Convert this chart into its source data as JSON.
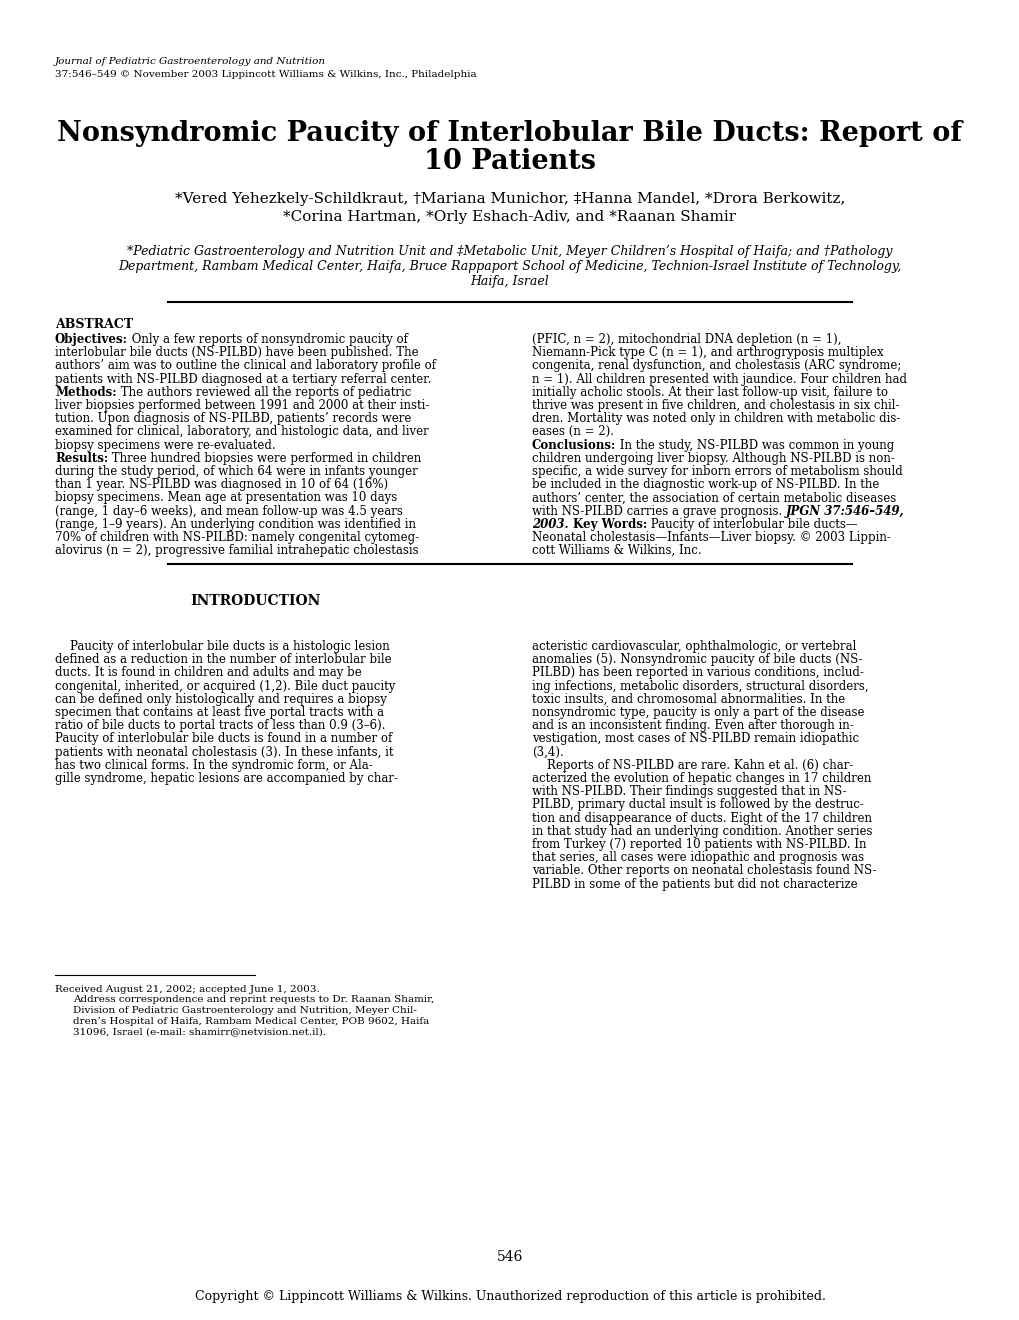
{
  "background_color": "#ffffff",
  "journal_line1": "Journal of Pediatric Gastroenterology and Nutrition",
  "journal_line2": "37:546–549 © November 2003 Lippincott Williams & Wilkins, Inc., Philadelphia",
  "title_line1": "Nonsyndromic Paucity of Interlobular Bile Ducts: Report of",
  "title_line2": "10 Patients",
  "authors_line1": "*Vered Yehezkely-Schildkraut, †Mariana Munichor, ‡Hanna Mandel, *Drora Berkowitz,",
  "authors_line2": "*Corina Hartman, *Orly Eshach-Adiv, and *Raanan Shamir",
  "affil_line1": "*Pediatric Gastroenterology and Nutrition Unit and ‡Metabolic Unit, Meyer Children’s Hospital of Haifa; and †Pathology",
  "affil_line2": "Department, Rambam Medical Center, Haifa, Bruce Rappaport School of Medicine, Technion-Israel Institute of Technology,",
  "affil_line3": "Haifa, Israel",
  "abstract_title": "ABSTRACT",
  "abs_left_lines": [
    [
      [
        "Objectives:",
        true
      ],
      [
        " Only a few reports of nonsyndromic paucity of",
        false
      ]
    ],
    [
      [
        "interlobular bile ducts (NS-PILBD) have been published. The",
        false
      ]
    ],
    [
      [
        "authors’ aim was to outline the clinical and laboratory profile of",
        false
      ]
    ],
    [
      [
        "patients with NS-PILBD diagnosed at a tertiary referral center.",
        false
      ]
    ],
    [
      [
        "Methods:",
        true
      ],
      [
        " The authors reviewed all the reports of pediatric",
        false
      ]
    ],
    [
      [
        "liver biopsies performed between 1991 and 2000 at their insti-",
        false
      ]
    ],
    [
      [
        "tution. Upon diagnosis of NS-PILBD, patients’ records were",
        false
      ]
    ],
    [
      [
        "examined for clinical, laboratory, and histologic data, and liver",
        false
      ]
    ],
    [
      [
        "biopsy specimens were re-evaluated.",
        false
      ]
    ],
    [
      [
        "Results:",
        true
      ],
      [
        " Three hundred biopsies were performed in children",
        false
      ]
    ],
    [
      [
        "during the study period, of which 64 were in infants younger",
        false
      ]
    ],
    [
      [
        "than 1 year. NS-PILBD was diagnosed in 10 of 64 (16%)",
        false
      ]
    ],
    [
      [
        "biopsy specimens. Mean age at presentation was 10 days",
        false
      ]
    ],
    [
      [
        "(range, 1 day–6 weeks), and mean follow-up was 4.5 years",
        false
      ]
    ],
    [
      [
        "(range, 1–9 years). An underlying condition was identified in",
        false
      ]
    ],
    [
      [
        "70% of children with NS-PILBD: namely congenital cytomeg-",
        false
      ]
    ],
    [
      [
        "alovirus (n = 2), progressive familial intrahepatic cholestasis",
        false
      ]
    ]
  ],
  "abs_right_lines": [
    [
      [
        "(PFIC, n = 2), mitochondrial DNA depletion (n = 1),",
        false
      ]
    ],
    [
      [
        "Niemann-Pick type C (n = 1), and arthrogryposis multiplex",
        false
      ]
    ],
    [
      [
        "congenita, renal dysfunction, and cholestasis (ARC syndrome;",
        false
      ]
    ],
    [
      [
        "n = 1). All children presented with jaundice. Four children had",
        false
      ]
    ],
    [
      [
        "initially acholic stools. At their last follow-up visit, failure to",
        false
      ]
    ],
    [
      [
        "thrive was present in five children, and cholestasis in six chil-",
        false
      ]
    ],
    [
      [
        "dren. Mortality was noted only in children with metabolic dis-",
        false
      ]
    ],
    [
      [
        "eases (n = 2).",
        false
      ]
    ],
    [
      [
        "Conclusions:",
        true
      ],
      [
        " In the study, NS-PILBD was common in young",
        false
      ]
    ],
    [
      [
        "children undergoing liver biopsy. Although NS-PILBD is non-",
        false
      ]
    ],
    [
      [
        "specific, a wide survey for inborn errors of metabolism should",
        false
      ]
    ],
    [
      [
        "be included in the diagnostic work-up of NS-PILBD. In the",
        false
      ]
    ],
    [
      [
        "authors’ center, the association of certain metabolic diseases",
        false
      ]
    ],
    [
      [
        "with NS-PILBD carries a grave prognosis. ",
        false
      ],
      [
        "JPGN 37:546–549,",
        true,
        true
      ]
    ],
    [
      [
        "2003. ",
        true,
        true
      ],
      [
        "Key Words:",
        true,
        false
      ],
      [
        " Paucity of interlobular bile ducts—",
        false
      ]
    ],
    [
      [
        "Neonatal cholestasis—Infants—Liver biopsy. © 2003 Lippin-",
        false
      ]
    ],
    [
      [
        "cott Williams & Wilkins, Inc.",
        false
      ]
    ]
  ],
  "intro_title": "INTRODUCTION",
  "intro_left_lines": [
    [
      [
        "    Paucity of interlobular bile ducts is a histologic lesion",
        false
      ]
    ],
    [
      [
        "defined as a reduction in the number of interlobular bile",
        false
      ]
    ],
    [
      [
        "ducts. It is found in children and adults and may be",
        false
      ]
    ],
    [
      [
        "congenital, inherited, or acquired (1,2). Bile duct paucity",
        false
      ]
    ],
    [
      [
        "can be defined only histologically and requires a biopsy",
        false
      ]
    ],
    [
      [
        "specimen that contains at least five portal tracts with a",
        false
      ]
    ],
    [
      [
        "ratio of bile ducts to portal tracts of less than 0.9 (3–6).",
        false
      ]
    ],
    [
      [
        "Paucity of interlobular bile ducts is found in a number of",
        false
      ]
    ],
    [
      [
        "patients with neonatal cholestasis (3). In these infants, it",
        false
      ]
    ],
    [
      [
        "has two clinical forms. In the syndromic form, or Ala-",
        false
      ]
    ],
    [
      [
        "gille syndrome, hepatic lesions are accompanied by char-",
        false
      ]
    ]
  ],
  "intro_right_lines": [
    [
      [
        "acteristic cardiovascular, ophthalmologic, or vertebral",
        false
      ]
    ],
    [
      [
        "anomalies (5). Nonsyndromic paucity of bile ducts (NS-",
        false
      ]
    ],
    [
      [
        "PILBD) has been reported in various conditions, includ-",
        false
      ]
    ],
    [
      [
        "ing infections, metabolic disorders, structural disorders,",
        false
      ]
    ],
    [
      [
        "toxic insults, and chromosomal abnormalities. In the",
        false
      ]
    ],
    [
      [
        "nonsyndromic type, paucity is only a part of the disease",
        false
      ]
    ],
    [
      [
        "and is an inconsistent finding. Even after thorough in-",
        false
      ]
    ],
    [
      [
        "vestigation, most cases of NS-PILBD remain idiopathic",
        false
      ]
    ],
    [
      [
        "(3,4).",
        false
      ]
    ],
    [
      [
        "    Reports of NS-PILBD are rare. Kahn et al. (6) char-",
        false
      ]
    ],
    [
      [
        "acterized the evolution of hepatic changes in 17 children",
        false
      ]
    ],
    [
      [
        "with NS-PILBD. Their findings suggested that in NS-",
        false
      ]
    ],
    [
      [
        "PILBD, primary ductal insult is followed by the destruc-",
        false
      ]
    ],
    [
      [
        "tion and disappearance of ducts. Eight of the 17 children",
        false
      ]
    ],
    [
      [
        "in that study had an underlying condition. Another series",
        false
      ]
    ],
    [
      [
        "from Turkey (7) reported 10 patients with NS-PILBD. In",
        false
      ]
    ],
    [
      [
        "that series, all cases were idiopathic and prognosis was",
        false
      ]
    ],
    [
      [
        "variable. Other reports on neonatal cholestasis found NS-",
        false
      ]
    ],
    [
      [
        "PILBD in some of the patients but did not characterize",
        false
      ]
    ]
  ],
  "footnote_lines": [
    "Received August 21, 2002; accepted June 1, 2003.",
    "Address correspondence and reprint requests to Dr. Raanan Shamir,",
    "Division of Pediatric Gastroenterology and Nutrition, Meyer Chil-",
    "dren’s Hospital of Haifa, Rambam Medical Center, POB 9602, Haifa",
    "31096, Israel (e-mail: shamirr@netvision.net.il)."
  ],
  "footer_page": "546",
  "footer_copyright": "Copyright © Lippincott Williams & Wilkins. Unauthorized reproduction of this article is prohibited."
}
